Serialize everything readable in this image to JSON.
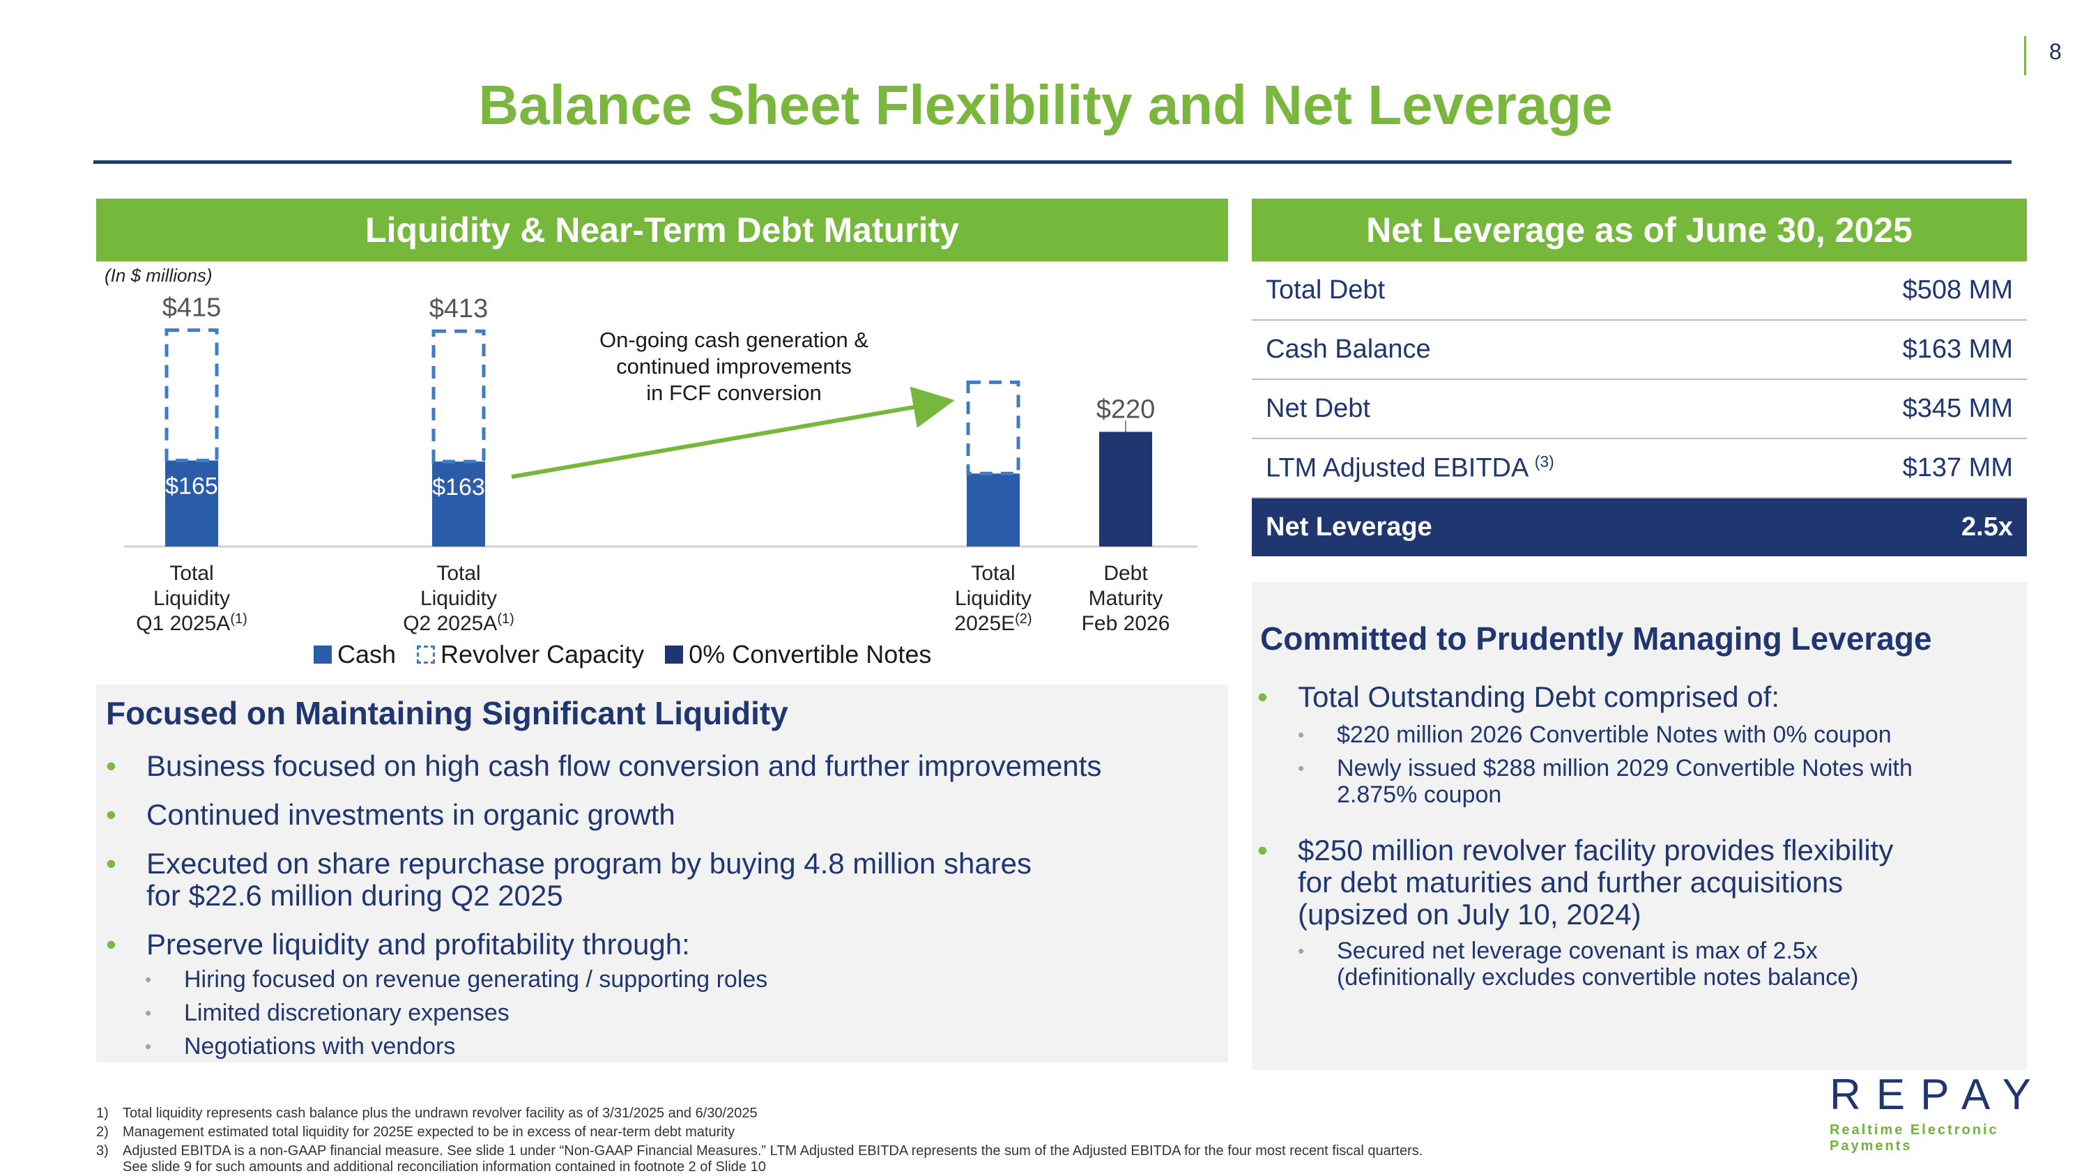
{
  "page_number": "8",
  "title": "Balance Sheet Flexibility and Net Leverage",
  "left_header": "Liquidity & Near-Term Debt Maturity",
  "right_header": "Net Leverage as of June 30, 2025",
  "units_note": "(In $ millions)",
  "chart_data": {
    "type": "bar",
    "stacked": true,
    "categories": [
      "Total Liquidity Q1 2025A(1)",
      "Total Liquidity Q2 2025A(1)",
      "Total Liquidity 2025E(2)",
      "Debt Maturity Feb 2026"
    ],
    "category_lines": [
      [
        "Total",
        "Liquidity",
        "Q1 2025A",
        "(1)"
      ],
      [
        "Total",
        "Liquidity",
        "Q2 2025A",
        "(1)"
      ],
      [
        "Total",
        "Liquidity",
        "2025E",
        "(2)"
      ],
      [
        "Debt",
        "Maturity",
        "Feb 2026",
        ""
      ]
    ],
    "series": [
      {
        "name": "Cash",
        "color": "#2a5caa",
        "values": [
          165,
          163,
          140,
          0
        ]
      },
      {
        "name": "Revolver Capacity",
        "color": "#3f7cc4",
        "style": "dashed",
        "values": [
          250,
          250,
          175,
          0
        ]
      },
      {
        "name": "0% Convertible Notes",
        "color": "#1f3670",
        "values": [
          0,
          0,
          0,
          220
        ]
      }
    ],
    "total_labels": [
      "$415",
      "$413",
      "",
      "$220"
    ],
    "cash_labels": [
      "$165",
      "$163",
      "",
      ""
    ],
    "annotation": [
      "On-going cash generation &",
      "continued improvements",
      "in FCF conversion"
    ],
    "ylim": [
      0,
      460
    ]
  },
  "legend": [
    "Cash",
    "Revolver Capacity",
    "0% Convertible Notes"
  ],
  "left_panel": {
    "title": "Focused on Maintaining Significant Liquidity",
    "bullets": [
      [
        "Business focused on high cash flow conversion and further improvements"
      ],
      [
        "Continued investments in organic growth"
      ],
      [
        "Executed on share repurchase program by buying 4.8 million shares",
        "for $22.6 million during Q2 2025"
      ],
      [
        "Preserve liquidity and profitability through:"
      ]
    ],
    "sub_bullets": [
      "Hiring focused on revenue generating / supporting roles",
      "Limited discretionary expenses",
      "Negotiations with vendors"
    ]
  },
  "leverage_table": [
    {
      "label": "Total Debt",
      "sup": "",
      "value": "$508 MM"
    },
    {
      "label": "Cash Balance",
      "sup": "",
      "value": "$163 MM"
    },
    {
      "label": "Net Debt",
      "sup": "",
      "value": "$345 MM"
    },
    {
      "label": "LTM Adjusted EBITDA",
      "sup": "(3)",
      "value": "$137 MM"
    }
  ],
  "leverage_total": {
    "label": "Net Leverage",
    "value": "2.5x"
  },
  "right_panel": {
    "title": "Committed to Prudently Managing Leverage",
    "bullet1": "Total Outstanding Debt comprised of:",
    "sub1": "$220 million 2026 Convertible Notes with 0% coupon",
    "sub2": [
      "Newly issued $288 million 2029 Convertible Notes with",
      "2.875% coupon"
    ],
    "bullet2": [
      "$250 million revolver facility provides flexibility",
      "for debt maturities and further acquisitions",
      "(upsized on July 10, 2024)"
    ],
    "sub3": [
      "Secured net leverage covenant is max of 2.5x",
      "(definitionally excludes convertible notes balance)"
    ]
  },
  "footnotes": [
    {
      "n": "1)",
      "lines": [
        "Total liquidity represents cash balance plus the undrawn revolver facility as of 3/31/2025 and 6/30/2025"
      ]
    },
    {
      "n": "2)",
      "lines": [
        "Management estimated total liquidity for 2025E expected to be in excess of near-term debt maturity"
      ]
    },
    {
      "n": "3)",
      "lines": [
        "Adjusted EBITDA is a non-GAAP financial measure.  See slide 1 under “Non-GAAP Financial Measures.”  LTM Adjusted EBITDA represents the sum of the Adjusted EBITDA for the four most recent fiscal quarters.",
        "See slide 9 for such amounts and additional reconciliation information contained in footnote 2 of Slide 10"
      ]
    }
  ],
  "logo": {
    "word": "REPAY",
    "tagline": "Realtime Electronic Payments"
  }
}
